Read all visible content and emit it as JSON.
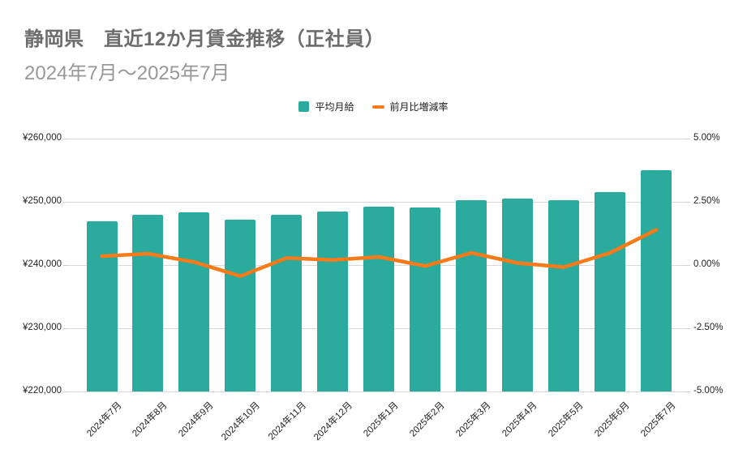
{
  "header": {
    "title": "静岡県　直近12か月賃金推移（正社員）",
    "subtitle": "2024年7月～2025年7月"
  },
  "legend": {
    "items": [
      {
        "label": "平均月給",
        "swatch": "square",
        "color": "#2BAA9E"
      },
      {
        "label": "前月比増減率",
        "swatch": "dash",
        "color": "#F87A18"
      }
    ]
  },
  "chart_data": {
    "type": "bar",
    "title": "静岡県　直近12か月賃金推移（正社員）",
    "subtitle": "2024年7月～2025年7月",
    "grid": true,
    "legend_position": "top-center",
    "categories": [
      "2024年7月",
      "2024年8月",
      "2024年9月",
      "2024年10月",
      "2024年11月",
      "2024年12月",
      "2025年1月",
      "2025年2月",
      "2025年3月",
      "2025年4月",
      "2025年5月",
      "2025年6月",
      "2025年7月"
    ],
    "series": [
      {
        "name": "平均月給",
        "type": "bar",
        "axis": "left",
        "color": "#2BAA9E",
        "unit": "yen",
        "values": [
          246900,
          248000,
          248300,
          247200,
          247900,
          248400,
          249200,
          249100,
          250300,
          250500,
          250300,
          251500,
          255000
        ]
      },
      {
        "name": "前月比増減率",
        "type": "line",
        "axis": "right",
        "color": "#F87A18",
        "unit": "percent",
        "values": [
          0.35,
          0.45,
          0.12,
          -0.44,
          0.28,
          0.2,
          0.32,
          -0.04,
          0.48,
          0.08,
          -0.08,
          0.48,
          1.39
        ]
      }
    ],
    "left_axis": {
      "min": 220000,
      "max": 260000,
      "ticks": [
        {
          "label": "¥260,000",
          "value": 260000
        },
        {
          "label": "¥250,000",
          "value": 250000
        },
        {
          "label": "¥240,000",
          "value": 240000
        },
        {
          "label": "¥230,000",
          "value": 230000
        },
        {
          "label": "¥220,000",
          "value": 220000
        }
      ]
    },
    "right_axis": {
      "min": -5,
      "max": 5,
      "ticks": [
        {
          "label": "5.00%",
          "value": 5
        },
        {
          "label": "2.50%",
          "value": 2.5
        },
        {
          "label": "0.00%",
          "value": 0
        },
        {
          "label": "-2.50%",
          "value": -2.5
        },
        {
          "label": "-5.00%",
          "value": -5
        }
      ]
    }
  }
}
